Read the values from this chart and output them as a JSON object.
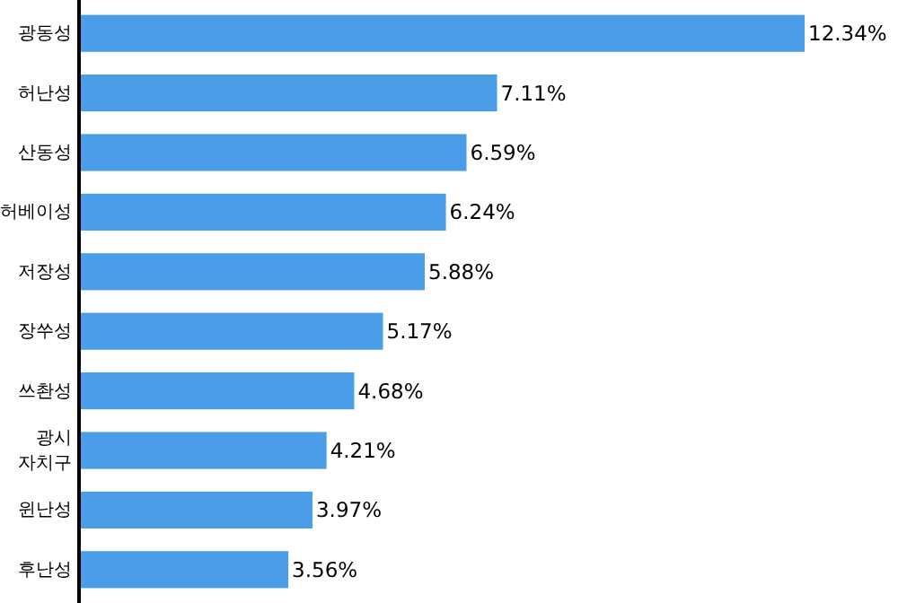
{
  "chart_data": {
    "type": "bar",
    "orientation": "horizontal",
    "categories": [
      "광동성",
      "허난성",
      "산동성",
      "허베이성",
      "저장성",
      "장쑤성",
      "쓰촨성",
      "광시 자치구",
      "윈난성",
      "후난성"
    ],
    "values": [
      12.34,
      7.11,
      6.59,
      6.24,
      5.88,
      5.17,
      4.68,
      4.21,
      3.97,
      3.56
    ],
    "value_labels": [
      "12.34%",
      "7.11%",
      "6.59%",
      "6.24%",
      "5.88%",
      "5.17%",
      "4.68%",
      "4.21%",
      "3.97%",
      "3.56%"
    ],
    "color": "#4a9de6"
  }
}
